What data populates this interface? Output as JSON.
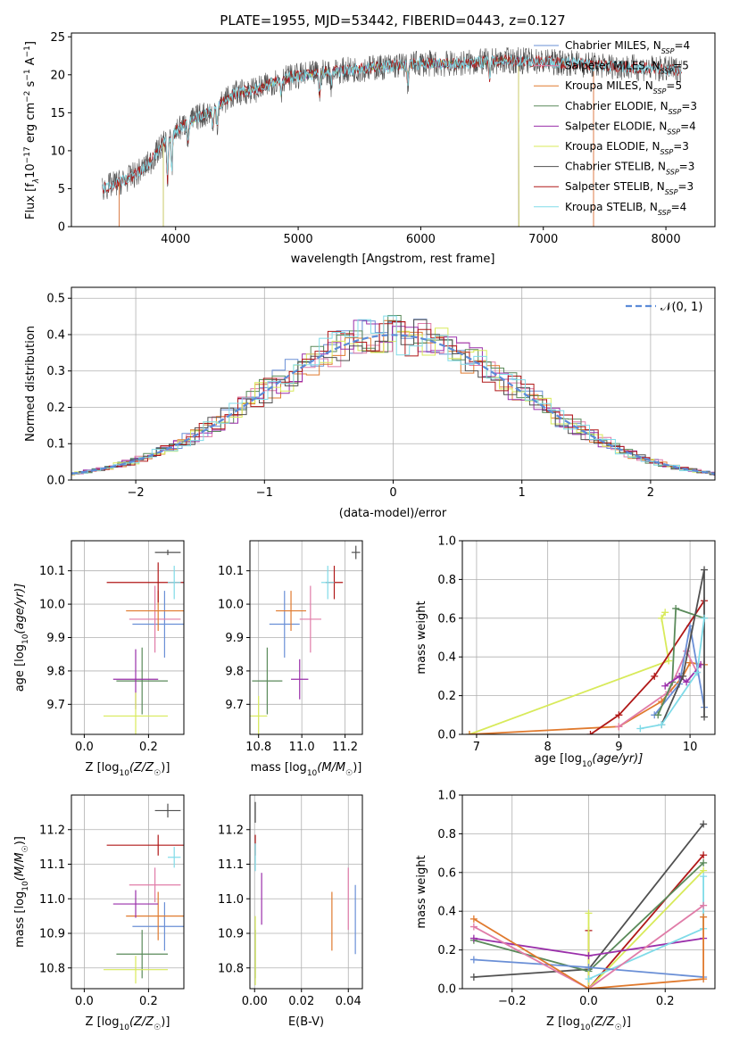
{
  "colors": {
    "Chabrier MILES": "#6a8fd6",
    "Salpeter MILES": "#e07ca8",
    "Kroupa MILES": "#e07a2e",
    "Chabrier ELODIE": "#5a8a5a",
    "Salpeter ELODIE": "#9a2faa",
    "Kroupa ELODIE": "#d8ea5a",
    "Chabrier STELIB": "#505050",
    "Salpeter STELIB": "#b01818",
    "Kroupa STELIB": "#80dbe8"
  },
  "chart_data": [
    {
      "id": "spectrum",
      "type": "line",
      "title": "PLATE=1955, MJD=53442, FIBERID=0443, z=0.127",
      "xlabel": "wavelength [Angstrom, rest frame]",
      "ylabel_parts": [
        "Flux [f",
        "λ",
        "10",
        "−17",
        " erg cm",
        "−2",
        " s",
        "−1",
        " A",
        "−1",
        "]"
      ],
      "xlim": [
        3150,
        8400
      ],
      "ylim": [
        0,
        25.5
      ],
      "xticks": [
        4000,
        5000,
        6000,
        7000,
        8000
      ],
      "yticks": [
        0,
        5,
        10,
        15,
        20,
        25
      ],
      "grid": false,
      "legend_position": "upper-right",
      "series": [
        {
          "name": "Chabrier MILES",
          "nssp": "4",
          "start": 3540,
          "end": 7410,
          "cut_low": 3540,
          "cut_high": 7410
        },
        {
          "name": "Salpeter MILES",
          "nssp": "5",
          "start": 3540,
          "end": 7410,
          "cut_low": 3540,
          "cut_high": 7410
        },
        {
          "name": "Kroupa MILES",
          "nssp": "5",
          "start": 3540,
          "end": 7410,
          "cut_low": 3540,
          "cut_high": 7410
        },
        {
          "name": "Chabrier ELODIE",
          "nssp": "3",
          "start": 3900,
          "end": 6800,
          "cut_low": 3900,
          "cut_high": 6800
        },
        {
          "name": "Salpeter ELODIE",
          "nssp": "4",
          "start": 3900,
          "end": 6800,
          "cut_low": 3900,
          "cut_high": 6800
        },
        {
          "name": "Kroupa ELODIE",
          "nssp": "3",
          "start": 3900,
          "end": 6800,
          "cut_low": 3900,
          "cut_high": 6800
        },
        {
          "name": "Chabrier STELIB",
          "nssp": "3",
          "start": 3400,
          "end": 8130,
          "cut_low": null,
          "cut_high": null
        },
        {
          "name": "Salpeter STELIB",
          "nssp": "3",
          "start": 3400,
          "end": 8130,
          "cut_low": null,
          "cut_high": null
        },
        {
          "name": "Kroupa STELIB",
          "nssp": "4",
          "start": 3400,
          "end": 8130,
          "cut_low": null,
          "cut_high": null
        }
      ],
      "continuum": {
        "x": [
          3400,
          3500,
          3600,
          3700,
          3800,
          3900,
          4000,
          4100,
          4200,
          4300,
          4400,
          4500,
          4600,
          4700,
          4800,
          4900,
          5000,
          5200,
          5400,
          5600,
          5800,
          6000,
          6200,
          6400,
          6600,
          6800,
          7000,
          7200,
          7400,
          7600,
          7800,
          8000,
          8130
        ],
        "y": [
          5,
          5.6,
          6.2,
          7.2,
          8.6,
          11,
          12.6,
          13.7,
          14.6,
          15.2,
          16.6,
          17.6,
          17.9,
          18.2,
          19.1,
          19.6,
          19.8,
          20.3,
          20.6,
          20.9,
          21.2,
          21.5,
          21.4,
          21.6,
          21.8,
          21.9,
          21.7,
          21.6,
          21.3,
          21.1,
          20.9,
          20.7,
          20.6
        ]
      }
    },
    {
      "id": "residuals",
      "type": "line",
      "xlabel": "(data-model)/error",
      "ylabel": "Normed distribution",
      "xlim": [
        -2.5,
        2.5
      ],
      "ylim": [
        0,
        0.53
      ],
      "xticks": [
        -2,
        -1,
        0,
        1,
        2
      ],
      "yticks": [
        0.0,
        0.1,
        0.2,
        0.3,
        0.4,
        0.5
      ],
      "grid": true,
      "legend_position": "upper-right",
      "reference_legend": "𝒩(0, 1)",
      "reference_color": "#5b8bd8",
      "bin_width": 0.1,
      "reference_curve": "normal(0,1) density"
    },
    {
      "id": "age-vs-Z",
      "type": "scatter",
      "xlabel_parts": [
        "Z [log",
        "10",
        "(Z/Z",
        "☉",
        ")]"
      ],
      "ylabel_parts": [
        "age  [log",
        "10",
        "(age/yr)]"
      ],
      "xlim": [
        -0.04,
        0.31
      ],
      "ylim": [
        9.61,
        10.19
      ],
      "xticks": [
        0.0,
        0.2
      ],
      "yticks": [
        9.7,
        9.8,
        9.9,
        10.0,
        10.1
      ],
      "grid": true,
      "points": [
        {
          "s": "Chabrier MILES",
          "x": 0.25,
          "y": 9.94,
          "xerr": 0.1,
          "yerr": 0.1
        },
        {
          "s": "Salpeter MILES",
          "x": 0.22,
          "y": 9.955,
          "xerr": 0.08,
          "yerr": 0.1
        },
        {
          "s": "Kroupa MILES",
          "x": 0.23,
          "y": 9.98,
          "xerr": 0.1,
          "yerr": 0.06
        },
        {
          "s": "Chabrier ELODIE",
          "x": 0.18,
          "y": 9.77,
          "xerr": 0.08,
          "yerr": 0.1
        },
        {
          "s": "Salpeter ELODIE",
          "x": 0.16,
          "y": 9.775,
          "xerr": 0.07,
          "yerr": 0.09
        },
        {
          "s": "Kroupa ELODIE",
          "x": 0.16,
          "y": 9.665,
          "xerr": 0.1,
          "yerr": 0.07
        },
        {
          "s": "Chabrier STELIB",
          "x": 0.26,
          "y": 10.155,
          "xerr": 0.04,
          "yerr": 0.008
        },
        {
          "s": "Salpeter STELIB",
          "x": 0.23,
          "y": 10.065,
          "xerr": 0.16,
          "yerr": 0.06
        },
        {
          "s": "Kroupa STELIB",
          "x": 0.28,
          "y": 10.065,
          "xerr": 0.02,
          "yerr": 0.05
        }
      ]
    },
    {
      "id": "age-vs-mass",
      "type": "scatter",
      "xlabel_parts": [
        "mass [log",
        "10",
        "(M/M",
        "☉",
        ")]"
      ],
      "ylabel_parts": [],
      "xlim": [
        10.76,
        11.28
      ],
      "ylim": [
        9.61,
        10.19
      ],
      "xticks": [
        10.8,
        11.0,
        11.2
      ],
      "yticks": [
        9.7,
        9.8,
        9.9,
        10.0,
        10.1
      ],
      "grid": true,
      "points": [
        {
          "s": "Chabrier MILES",
          "x": 10.92,
          "y": 9.94,
          "xerr": 0.07,
          "yerr": 0.1
        },
        {
          "s": "Salpeter MILES",
          "x": 11.04,
          "y": 9.955,
          "xerr": 0.05,
          "yerr": 0.1
        },
        {
          "s": "Kroupa MILES",
          "x": 10.95,
          "y": 9.98,
          "xerr": 0.07,
          "yerr": 0.06
        },
        {
          "s": "Chabrier ELODIE",
          "x": 10.84,
          "y": 9.77,
          "xerr": 0.07,
          "yerr": 0.1
        },
        {
          "s": "Salpeter ELODIE",
          "x": 10.99,
          "y": 9.775,
          "xerr": 0.04,
          "yerr": 0.06
        },
        {
          "s": "Kroupa ELODIE",
          "x": 10.8,
          "y": 9.665,
          "xerr": 0.04,
          "yerr": 0.06
        },
        {
          "s": "Chabrier STELIB",
          "x": 11.25,
          "y": 10.155,
          "xerr": 0.02,
          "yerr": 0.02
        },
        {
          "s": "Salpeter STELIB",
          "x": 11.15,
          "y": 10.065,
          "xerr": 0.04,
          "yerr": 0.05
        },
        {
          "s": "Kroupa STELIB",
          "x": 11.12,
          "y": 10.065,
          "xerr": 0.03,
          "yerr": 0.05
        }
      ]
    },
    {
      "id": "weight-vs-age",
      "type": "line",
      "xlabel_parts": [
        "age  [log",
        "10",
        "(age/yr)]"
      ],
      "ylabel": "mass weight",
      "xlim": [
        6.8,
        10.35
      ],
      "ylim": [
        0,
        1.0
      ],
      "xticks": [
        7,
        8,
        9,
        10
      ],
      "yticks": [
        0.0,
        0.2,
        0.4,
        0.6,
        0.8,
        1.0
      ],
      "grid": true,
      "series": [
        {
          "s": "Kroupa ELODIE",
          "x": [
            6.9,
            9.7,
            9.6,
            9.65
          ],
          "y": [
            0.0,
            0.38,
            0.6,
            0.63
          ]
        },
        {
          "s": "Kroupa MILES",
          "x": [
            6.9,
            9.0,
            9.6,
            9.9,
            10.0,
            10.2
          ],
          "y": [
            0.0,
            0.04,
            0.17,
            0.3,
            0.37,
            0.36
          ]
        },
        {
          "s": "Salpeter MILES",
          "x": [
            9.0,
            9.7,
            9.95,
            10.1
          ],
          "y": [
            0.04,
            0.22,
            0.43,
            0.32
          ]
        },
        {
          "s": "Chabrier MILES",
          "x": [
            9.5,
            9.85,
            10.0,
            10.2
          ],
          "y": [
            0.1,
            0.26,
            0.56,
            0.14
          ]
        },
        {
          "s": "Salpeter STELIB",
          "x": [
            8.6,
            9.0,
            9.5,
            10.2
          ],
          "y": [
            0.0,
            0.1,
            0.3,
            0.69
          ]
        },
        {
          "s": "Chabrier ELODIE",
          "x": [
            9.55,
            9.75,
            9.8,
            10.2
          ],
          "y": [
            0.1,
            0.27,
            0.65,
            0.6
          ]
        },
        {
          "s": "Salpeter ELODIE",
          "x": [
            9.65,
            9.85,
            9.95,
            10.15
          ],
          "y": [
            0.25,
            0.3,
            0.27,
            0.36
          ]
        },
        {
          "s": "Chabrier STELIB",
          "x": [
            9.6,
            9.9,
            10.2,
            10.2
          ],
          "y": [
            0.05,
            0.3,
            0.85,
            0.09
          ]
        },
        {
          "s": "Kroupa STELIB",
          "x": [
            9.3,
            9.6,
            10.1,
            10.2
          ],
          "y": [
            0.03,
            0.05,
            0.32,
            0.6
          ]
        }
      ]
    },
    {
      "id": "mass-vs-Z",
      "type": "scatter",
      "xlabel_parts": [
        "Z [log",
        "10",
        "(Z/Z",
        "☉",
        ")]"
      ],
      "ylabel_parts": [
        "mass [log",
        "10",
        "(M/M",
        "☉",
        ")]"
      ],
      "xlim": [
        -0.04,
        0.31
      ],
      "ylim": [
        10.74,
        11.3
      ],
      "xticks": [
        0.0,
        0.2
      ],
      "yticks": [
        10.8,
        10.9,
        11.0,
        11.1,
        11.2
      ],
      "grid": true,
      "points": [
        {
          "s": "Chabrier MILES",
          "x": 0.25,
          "y": 10.92,
          "xerr": 0.1,
          "yerr": 0.07
        },
        {
          "s": "Salpeter MILES",
          "x": 0.22,
          "y": 11.04,
          "xerr": 0.08,
          "yerr": 0.05
        },
        {
          "s": "Kroupa MILES",
          "x": 0.23,
          "y": 10.95,
          "xerr": 0.1,
          "yerr": 0.07
        },
        {
          "s": "Chabrier ELODIE",
          "x": 0.18,
          "y": 10.84,
          "xerr": 0.08,
          "yerr": 0.07
        },
        {
          "s": "Salpeter ELODIE",
          "x": 0.16,
          "y": 10.985,
          "xerr": 0.07,
          "yerr": 0.04
        },
        {
          "s": "Kroupa ELODIE",
          "x": 0.16,
          "y": 10.795,
          "xerr": 0.1,
          "yerr": 0.04
        },
        {
          "s": "Chabrier STELIB",
          "x": 0.26,
          "y": 11.255,
          "xerr": 0.04,
          "yerr": 0.02
        },
        {
          "s": "Salpeter STELIB",
          "x": 0.23,
          "y": 11.155,
          "xerr": 0.16,
          "yerr": 0.03
        },
        {
          "s": "Kroupa STELIB",
          "x": 0.28,
          "y": 11.12,
          "xerr": 0.02,
          "yerr": 0.03
        }
      ]
    },
    {
      "id": "mass-vs-ebv",
      "type": "scatter",
      "xlabel": "E(B-V)",
      "ylabel_parts": [],
      "xlim": [
        -0.002,
        0.046
      ],
      "ylim": [
        10.74,
        11.3
      ],
      "xticks": [
        0.0,
        0.02,
        0.04
      ],
      "yticks": [
        10.8,
        10.9,
        11.0,
        11.1,
        11.2
      ],
      "grid": true,
      "points": [
        {
          "s": "Chabrier MILES",
          "x": 0.043,
          "y": 10.94,
          "xerr": 0,
          "yerr": 0.1
        },
        {
          "s": "Salpeter MILES",
          "x": 0.04,
          "y": 11.0,
          "xerr": 0,
          "yerr": 0.09
        },
        {
          "s": "Kroupa MILES",
          "x": 0.033,
          "y": 10.935,
          "xerr": 0,
          "yerr": 0.085
        },
        {
          "s": "Chabrier ELODIE",
          "x": 0.0003,
          "y": 10.84,
          "xerr": 0,
          "yerr": 0.07
        },
        {
          "s": "Salpeter ELODIE",
          "x": 0.003,
          "y": 11.0,
          "xerr": 0,
          "yerr": 0.075
        },
        {
          "s": "Kroupa ELODIE",
          "x": 0.0003,
          "y": 10.85,
          "xerr": 0,
          "yerr": 0.1
        },
        {
          "s": "Chabrier STELIB",
          "x": 0.0003,
          "y": 11.25,
          "xerr": 0,
          "yerr": 0.03
        },
        {
          "s": "Salpeter STELIB",
          "x": 0.0003,
          "y": 11.155,
          "xerr": 0,
          "yerr": 0.03
        },
        {
          "s": "Kroupa STELIB",
          "x": 0.0003,
          "y": 11.12,
          "xerr": 0,
          "yerr": 0.04
        }
      ]
    },
    {
      "id": "weight-vs-Z",
      "type": "line",
      "xlabel_parts": [
        "Z [log",
        "10",
        "(Z/Z",
        "☉",
        ")]"
      ],
      "ylabel": "mass weight",
      "xlim": [
        -0.33,
        0.33
      ],
      "ylim": [
        0,
        1.0
      ],
      "xticks": [
        -0.2,
        0.0,
        0.2
      ],
      "yticks": [
        0.0,
        0.2,
        0.4,
        0.6,
        0.8,
        1.0
      ],
      "grid": true,
      "series": [
        {
          "s": "Chabrier STELIB",
          "x": [
            -0.3,
            0.0,
            0.3
          ],
          "y": [
            0.06,
            0.1,
            0.85
          ]
        },
        {
          "s": "Salpeter STELIB",
          "x": [
            0.0,
            0.0,
            0.3
          ],
          "y": [
            0.3,
            0.0,
            0.69
          ]
        },
        {
          "s": "Chabrier ELODIE",
          "x": [
            -0.3,
            0.0,
            0.3
          ],
          "y": [
            0.25,
            0.09,
            0.65
          ]
        },
        {
          "s": "Kroupa ELODIE",
          "x": [
            0.0,
            0.0,
            0.3
          ],
          "y": [
            0.39,
            0.0,
            0.61
          ]
        },
        {
          "s": "Salpeter ELODIE",
          "x": [
            -0.3,
            0.0,
            0.3
          ],
          "y": [
            0.26,
            0.17,
            0.26
          ]
        },
        {
          "s": "Kroupa STELIB",
          "x": [
            0.0,
            0.3,
            0.3
          ],
          "y": [
            0.05,
            0.31,
            0.58
          ]
        },
        {
          "s": "Chabrier MILES",
          "x": [
            -0.3,
            0.0,
            0.3
          ],
          "y": [
            0.15,
            0.11,
            0.06
          ]
        },
        {
          "s": "Salpeter MILES",
          "x": [
            -0.3,
            0.0,
            0.3
          ],
          "y": [
            0.32,
            0.0,
            0.43
          ]
        },
        {
          "s": "Kroupa MILES",
          "x": [
            -0.3,
            0.0,
            0.3,
            0.3
          ],
          "y": [
            0.36,
            0.0,
            0.05,
            0.37
          ]
        }
      ]
    }
  ]
}
